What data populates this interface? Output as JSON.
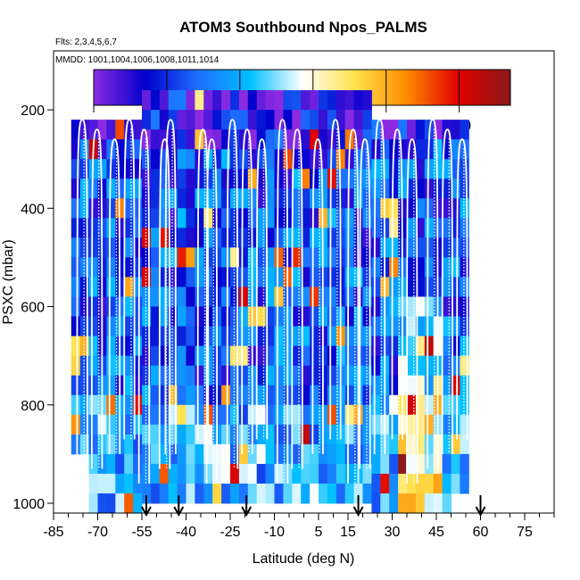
{
  "chart_data": {
    "type": "heatmap",
    "title": "ATOM3 Southbound Npos_PALMS",
    "flights_label": "Flts: 2,3,4,5,6,7",
    "dates_label": "MMDD: 1001,1004,1006,1008,1011,1014",
    "xlabel": "Latitude (deg N)",
    "ylabel": "PSXC (mbar)",
    "xlim": [
      -85,
      85
    ],
    "ylim": [
      1020,
      80
    ],
    "x_ticks": [
      -85,
      -70,
      -55,
      -40,
      -25,
      -10,
      5,
      15,
      30,
      45,
      60,
      75
    ],
    "y_ticks": [
      200,
      400,
      600,
      800,
      1000
    ],
    "colorbar": {
      "range": [
        0,
        570
      ],
      "ticks": [
        0,
        100,
        200,
        300,
        400,
        500
      ],
      "colors": [
        "#8a2be2",
        "#0000cd",
        "#1e6fff",
        "#00bfff",
        "#ffffff",
        "#ffe24d",
        "#ff8c00",
        "#e00000",
        "#8b1a1a"
      ]
    },
    "flight_markers_lat": [
      -53.5,
      -42.5,
      -19.5,
      18.5,
      60.0
    ],
    "heatmap": {
      "lat_start": -79,
      "lat_end": 56,
      "lat_step": 3,
      "pressure_top": 160,
      "pressure_bottom": 1000,
      "pressure_step": 40,
      "typical_value": 130
    },
    "profiles_white_solid": {
      "latitudes": [
        -77,
        -72,
        -66,
        -61,
        -56,
        -49,
        -47,
        -36,
        -33,
        -26,
        -21,
        -16,
        -9,
        -4,
        3,
        9,
        15,
        19,
        24,
        30,
        35,
        42,
        47,
        52
      ],
      "top_pressure": 220,
      "bottom_pressure": 960
    }
  }
}
